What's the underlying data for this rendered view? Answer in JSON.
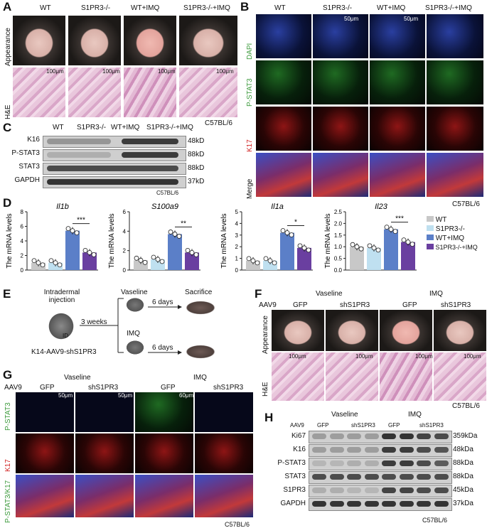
{
  "panels": {
    "A": "A",
    "B": "B",
    "C": "C",
    "D": "D",
    "E": "E",
    "F": "F",
    "G": "G",
    "H": "H"
  },
  "groups4": [
    "WT",
    "S1PR3-/-",
    "WT+IMQ",
    "S1PR3-/-+IMQ"
  ],
  "A": {
    "row1": "Appearance",
    "row2": "H&E",
    "scale": "100μm",
    "strain": "C57BL/6"
  },
  "B": {
    "rows": [
      "DAPI",
      "P-STAT3",
      "K17",
      "Merge"
    ],
    "scale": "50μm",
    "strain": "C57BL/6"
  },
  "C": {
    "rows": [
      "K16",
      "P-STAT3",
      "STAT3",
      "GAPDH"
    ],
    "sizes": [
      "48kD",
      "88kD",
      "88kD",
      "37kD"
    ],
    "strain": "C57BL/6"
  },
  "D": {
    "ylabel": "The mRNA levels",
    "legend": [
      "WT",
      "S1PR3-/-",
      "WT+IMQ",
      "S1PR3-/-+IMQ"
    ],
    "colors": {
      "wt": "#c8c8c8",
      "ko": "#bfe0f0",
      "imq": "#5b7fc8",
      "koimq": "#6a3fa0"
    }
  },
  "chart_data": [
    {
      "type": "bar",
      "title": "Il1b",
      "categories": [
        "WT",
        "S1PR3-/-",
        "WT+IMQ",
        "S1PR3-/-+IMQ"
      ],
      "values": [
        1.0,
        1.0,
        5.4,
        2.4
      ],
      "ylim": [
        0,
        8
      ],
      "yticks": [
        "0",
        "2",
        "4",
        "6",
        "8"
      ],
      "sig": "***"
    },
    {
      "type": "bar",
      "title": "S100a9",
      "categories": [
        "WT",
        "S1PR3-/-",
        "WT+IMQ",
        "S1PR3-/-+IMQ"
      ],
      "values": [
        1.0,
        1.1,
        3.7,
        1.8
      ],
      "ylim": [
        0,
        6
      ],
      "yticks": [
        "0",
        "2",
        "4",
        "6"
      ],
      "sig": "**"
    },
    {
      "type": "bar",
      "title": "Il1a",
      "categories": [
        "WT",
        "S1PR3-/-",
        "WT+IMQ",
        "S1PR3-/-+IMQ"
      ],
      "values": [
        0.8,
        0.8,
        3.2,
        1.9
      ],
      "ylim": [
        0,
        5
      ],
      "yticks": [
        "0",
        "1",
        "2",
        "3",
        "4",
        "5"
      ],
      "sig": "*"
    },
    {
      "type": "bar",
      "title": "Il23",
      "categories": [
        "WT",
        "S1PR3-/-",
        "WT+IMQ",
        "S1PR3-/-+IMQ"
      ],
      "values": [
        1.0,
        0.95,
        1.75,
        1.2
      ],
      "ylim": [
        0,
        2.5
      ],
      "yticks": [
        "0.0",
        "0.5",
        "1.0",
        "1.5",
        "2.0",
        "2.5"
      ],
      "sig": "***"
    }
  ],
  "E": {
    "inj1": "Intradermal",
    "inj2": "injection",
    "weeks": "3 weeks",
    "vaseline": "Vaseline",
    "imq": "IMQ",
    "days": "6 days",
    "sacrifice": "Sacrifice",
    "mouse": "K14-AAV9-shS1PR3",
    "id": "ID"
  },
  "FG": {
    "aav": "AAV9",
    "vaseline": "Vaseline",
    "imq": "IMQ",
    "gfp": "GFP",
    "sh": "shS1PR3",
    "appearance": "Appearance",
    "he": "H&E",
    "scale100": "100μm",
    "scale50": "50μm",
    "scale60": "60μm",
    "strain": "C57BL/6"
  },
  "G": {
    "rows": [
      "P-STAT3",
      "K17",
      "P-STAT3/K17"
    ]
  },
  "H": {
    "rows": [
      "Ki67",
      "K16",
      "P-STAT3",
      "STAT3",
      "S1PR3",
      "GAPDH"
    ],
    "sizes": [
      "359kDa",
      "48kDa",
      "88kDa",
      "88kDa",
      "45kDa",
      "37kDa"
    ],
    "strain": "C57BL/6"
  }
}
